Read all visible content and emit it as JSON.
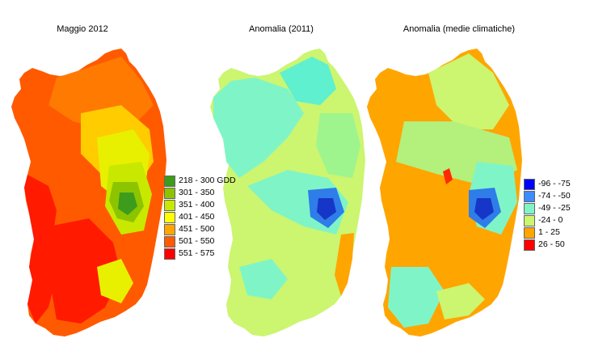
{
  "maps": [
    {
      "title": "Maggio 2012",
      "base_color": "#ff5a00",
      "zones": [
        "#ff1a00",
        "#ff7a00",
        "#ffcc00",
        "#e8f000",
        "#c8e800",
        "#8cc400",
        "#3d9c1c"
      ]
    },
    {
      "title": "Anomalia (2011)",
      "base_color": "#ccf570",
      "zones": [
        "#7ff5c7",
        "#5ef0cf",
        "#9ef58e",
        "#2e7de8",
        "#1636c8",
        "#ffa500"
      ]
    },
    {
      "title": "Anomalia (medie climatiche)",
      "base_color": "#ffa500",
      "zones": [
        "#ccf570",
        "#b4f07c",
        "#7ff5c7",
        "#2e7de8",
        "#1636c8",
        "#ff2a00"
      ]
    }
  ],
  "legends": {
    "gdd": [
      {
        "label": "218 - 300 GDD",
        "color": "#3d9c1c"
      },
      {
        "label": "301 - 350",
        "color": "#8cc400"
      },
      {
        "label": "351 - 400",
        "color": "#c8e800"
      },
      {
        "label": "401 - 450",
        "color": "#ffff00"
      },
      {
        "label": "451 - 500",
        "color": "#ffa500"
      },
      {
        "label": "501 - 550",
        "color": "#ff5a00"
      },
      {
        "label": "551 - 575",
        "color": "#ff0000"
      }
    ],
    "anomaly": [
      {
        "label": "-96 - -75",
        "color": "#0000ff"
      },
      {
        "label": "-74 - -50",
        "color": "#3d8cff"
      },
      {
        "label": "-49 - -25",
        "color": "#7ff5c7"
      },
      {
        "label": "-24 - 0",
        "color": "#ccf570"
      },
      {
        "label": "1 - 25",
        "color": "#ffa500"
      },
      {
        "label": "26 - 50",
        "color": "#ff0000"
      }
    ]
  }
}
